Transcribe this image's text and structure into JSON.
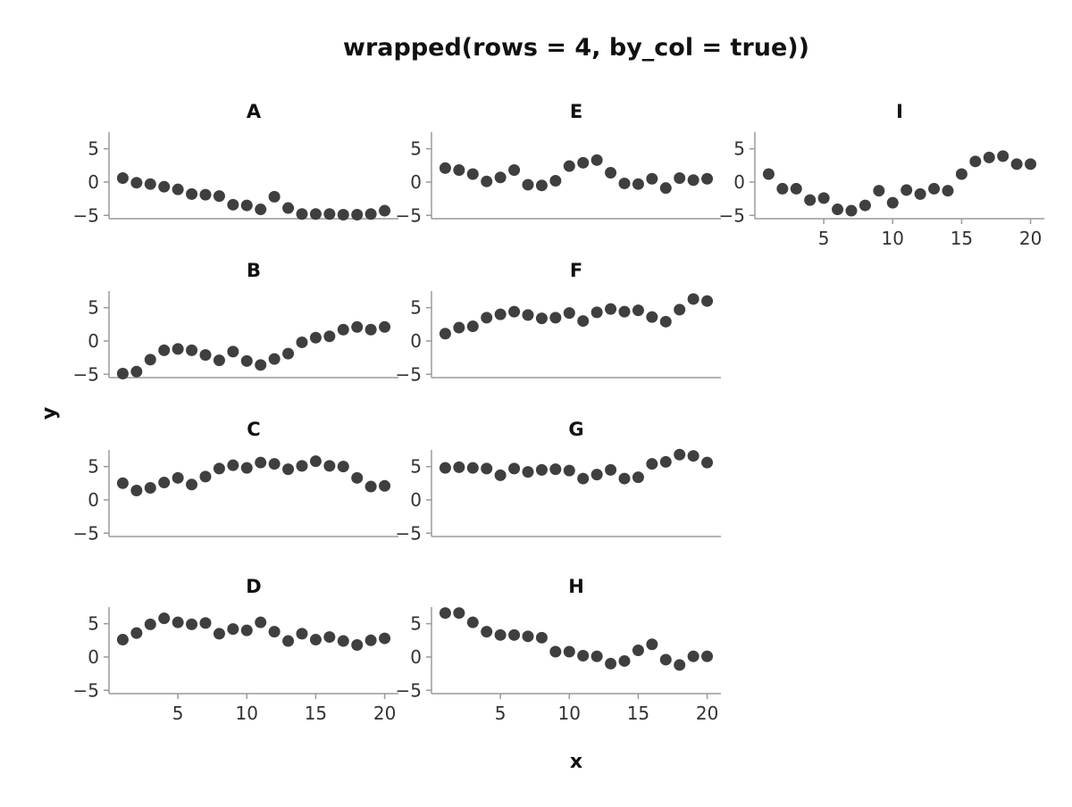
{
  "chart_data": {
    "type": "scatter",
    "title": "wrapped(rows = 4, by_col = true))",
    "xlabel": "x",
    "ylabel": "y",
    "xlim": [
      0,
      21
    ],
    "ylim": [
      -5.5,
      7.5
    ],
    "x_ticks": [
      "5",
      "10",
      "15",
      "20"
    ],
    "y_ticks": [
      "5",
      "0",
      "−5"
    ],
    "grid": false,
    "layout": {
      "rows": 4,
      "by_col": true
    },
    "x": [
      1,
      2,
      3,
      4,
      5,
      6,
      7,
      8,
      9,
      10,
      11,
      12,
      13,
      14,
      15,
      16,
      17,
      18,
      19,
      20
    ],
    "panels": [
      {
        "title": "A",
        "values": [
          0.6,
          -0.1,
          -0.3,
          -0.7,
          -1.1,
          -1.8,
          -1.9,
          -2.1,
          -3.4,
          -3.5,
          -4.1,
          -2.2,
          -3.9,
          -4.8,
          -4.8,
          -4.8,
          -4.9,
          -4.9,
          -4.8,
          -4.3
        ]
      },
      {
        "title": "B",
        "values": [
          -4.9,
          -4.6,
          -2.8,
          -1.4,
          -1.2,
          -1.4,
          -2.1,
          -2.9,
          -1.6,
          -3.0,
          -3.6,
          -2.7,
          -1.9,
          -0.2,
          0.5,
          0.7,
          1.7,
          2.1,
          1.7,
          2.1
        ]
      },
      {
        "title": "C",
        "values": [
          2.5,
          1.4,
          1.8,
          2.6,
          3.3,
          2.3,
          3.5,
          4.7,
          5.2,
          4.8,
          5.6,
          5.4,
          4.6,
          5.1,
          5.8,
          5.1,
          5.0,
          3.3,
          2.0,
          2.1
        ]
      },
      {
        "title": "D",
        "values": [
          2.6,
          3.6,
          4.9,
          5.8,
          5.2,
          4.9,
          5.1,
          3.5,
          4.2,
          4.0,
          5.2,
          3.8,
          2.4,
          3.5,
          2.6,
          3.0,
          2.4,
          1.8,
          2.5,
          2.8
        ]
      },
      {
        "title": "E",
        "values": [
          2.1,
          1.8,
          1.2,
          0.1,
          0.7,
          1.8,
          -0.4,
          -0.5,
          0.2,
          2.4,
          2.9,
          3.3,
          1.4,
          -0.2,
          -0.3,
          0.5,
          -0.9,
          0.6,
          0.3,
          0.5
        ]
      },
      {
        "title": "F",
        "values": [
          1.1,
          2.0,
          2.2,
          3.5,
          4.0,
          4.4,
          3.9,
          3.4,
          3.5,
          4.2,
          3.0,
          4.3,
          4.8,
          4.4,
          4.6,
          3.6,
          2.9,
          4.7,
          6.3,
          6.0
        ]
      },
      {
        "title": "G",
        "values": [
          4.8,
          4.9,
          4.8,
          4.7,
          3.7,
          4.7,
          4.2,
          4.5,
          4.6,
          4.4,
          3.2,
          3.8,
          4.5,
          3.2,
          3.4,
          5.4,
          5.7,
          6.8,
          6.6,
          5.6
        ]
      },
      {
        "title": "H",
        "values": [
          6.6,
          6.6,
          5.2,
          3.8,
          3.3,
          3.3,
          3.1,
          2.9,
          0.8,
          0.8,
          0.2,
          0.1,
          -1.0,
          -0.6,
          1.0,
          1.9,
          -0.4,
          -1.2,
          0.1,
          0.1
        ]
      },
      {
        "title": "I",
        "values": [
          1.2,
          -1.0,
          -1.0,
          -2.7,
          -2.4,
          -4.1,
          -4.3,
          -3.5,
          -1.3,
          -3.1,
          -1.2,
          -1.8,
          -1.0,
          -1.3,
          1.2,
          3.1,
          3.7,
          3.9,
          2.7,
          2.7
        ]
      }
    ]
  }
}
